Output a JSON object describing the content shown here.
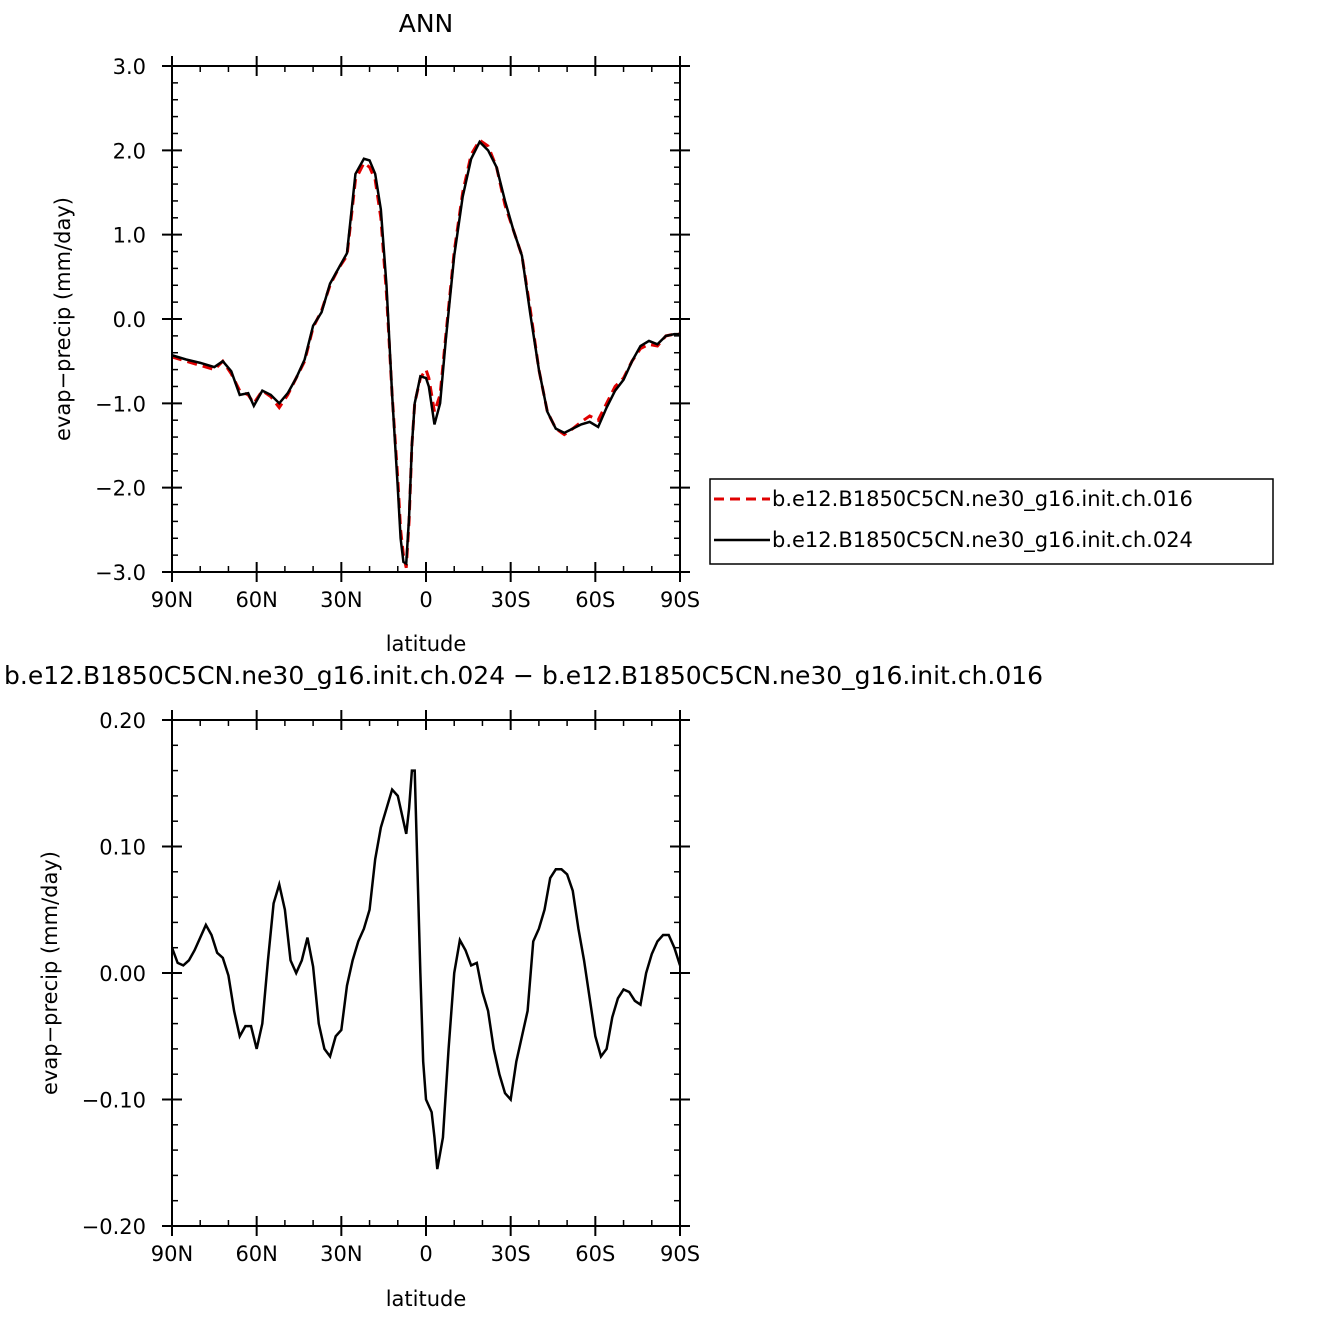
{
  "chart_data": [
    {
      "type": "line",
      "title": "ANN",
      "xlabel": "latitude",
      "ylabel": "evap−precip (mm/day)",
      "xlim": [
        90,
        -90
      ],
      "ylim": [
        -3.0,
        3.0
      ],
      "x_tick_values": [
        90,
        60,
        30,
        0,
        -30,
        -60,
        -90
      ],
      "x_tick_labels": [
        "90N",
        "60N",
        "30N",
        "0",
        "30S",
        "60S",
        "90S"
      ],
      "y_tick_values": [
        -3.0,
        -2.0,
        -1.0,
        0.0,
        1.0,
        2.0,
        3.0
      ],
      "y_tick_labels": [
        "−3.0",
        "−2.0",
        "−1.0",
        "0.0",
        "1.0",
        "2.0",
        "3.0"
      ],
      "legend": "right",
      "grid": false,
      "series": [
        {
          "name": "b.e12.B1850C5CN.ne30_g16.init.ch.016",
          "color": "#e00000",
          "dash": "dashed",
          "x": [
            90,
            85,
            80,
            75,
            72,
            69,
            66,
            63,
            61,
            58,
            55,
            52,
            49,
            46,
            43,
            40,
            37,
            34,
            31,
            28,
            25,
            22,
            20,
            18,
            16,
            14,
            12,
            10,
            9,
            8,
            7,
            6,
            5,
            4,
            2,
            0,
            -1,
            -3,
            -5,
            -7,
            -10,
            -13,
            -16,
            -19,
            -22,
            -25,
            -28,
            -31,
            -34,
            -37,
            -40,
            -43,
            -46,
            -49,
            -52,
            -55,
            -58,
            -61,
            -64,
            -67,
            -70,
            -73,
            -76,
            -79,
            -82,
            -85,
            -88,
            -90
          ],
          "y": [
            -0.45,
            -0.5,
            -0.55,
            -0.6,
            -0.5,
            -0.65,
            -0.85,
            -0.9,
            -1.0,
            -0.85,
            -0.92,
            -1.05,
            -0.9,
            -0.7,
            -0.5,
            -0.1,
            0.1,
            0.4,
            0.6,
            0.75,
            1.65,
            1.85,
            1.8,
            1.65,
            1.2,
            0.3,
            -0.9,
            -1.9,
            -2.5,
            -2.8,
            -2.95,
            -2.4,
            -1.5,
            -1.0,
            -0.7,
            -0.6,
            -0.7,
            -1.1,
            -0.9,
            -0.2,
            0.8,
            1.5,
            1.95,
            2.12,
            2.05,
            1.8,
            1.35,
            1.05,
            0.75,
            0.1,
            -0.6,
            -1.1,
            -1.3,
            -1.37,
            -1.3,
            -1.22,
            -1.15,
            -1.2,
            -1.0,
            -0.8,
            -0.7,
            -0.5,
            -0.35,
            -0.3,
            -0.32,
            -0.2,
            -0.18,
            -0.18
          ]
        },
        {
          "name": "b.e12.B1850C5CN.ne30_g16.init.ch.024",
          "color": "#000000",
          "dash": "solid",
          "x": [
            90,
            85,
            80,
            75,
            72,
            69,
            66,
            63,
            61,
            58,
            55,
            52,
            49,
            46,
            43,
            40,
            37,
            34,
            31,
            28,
            25,
            22,
            20,
            18,
            16,
            14,
            12,
            10,
            9,
            8,
            7,
            6,
            5,
            4,
            2,
            0,
            -1,
            -3,
            -5,
            -7,
            -10,
            -13,
            -16,
            -19,
            -22,
            -25,
            -28,
            -31,
            -34,
            -37,
            -40,
            -43,
            -46,
            -49,
            -52,
            -55,
            -58,
            -61,
            -64,
            -67,
            -70,
            -73,
            -76,
            -79,
            -82,
            -85,
            -88,
            -90
          ],
          "y": [
            -0.43,
            -0.48,
            -0.52,
            -0.57,
            -0.5,
            -0.62,
            -0.9,
            -0.88,
            -1.03,
            -0.85,
            -0.9,
            -1.0,
            -0.88,
            -0.7,
            -0.48,
            -0.08,
            0.08,
            0.42,
            0.6,
            0.78,
            1.72,
            1.9,
            1.88,
            1.72,
            1.3,
            0.4,
            -0.9,
            -2.0,
            -2.6,
            -2.88,
            -2.9,
            -2.35,
            -1.5,
            -1.0,
            -0.68,
            -0.7,
            -0.8,
            -1.25,
            -1.0,
            -0.25,
            0.75,
            1.45,
            1.9,
            2.1,
            2.0,
            1.8,
            1.4,
            1.05,
            0.75,
            0.05,
            -0.6,
            -1.1,
            -1.3,
            -1.35,
            -1.3,
            -1.25,
            -1.22,
            -1.28,
            -1.05,
            -0.85,
            -0.72,
            -0.5,
            -0.32,
            -0.26,
            -0.3,
            -0.2,
            -0.18,
            -0.18
          ]
        }
      ]
    },
    {
      "type": "line",
      "title": "b.e12.B1850C5CN.ne30_g16.init.ch.024 − b.e12.B1850C5CN.ne30_g16.init.ch.016",
      "xlabel": "latitude",
      "ylabel": "evap−precip (mm/day)",
      "xlim": [
        90,
        -90
      ],
      "ylim": [
        -0.2,
        0.2
      ],
      "x_tick_values": [
        90,
        60,
        30,
        0,
        -30,
        -60,
        -90
      ],
      "x_tick_labels": [
        "90N",
        "60N",
        "30N",
        "0",
        "30S",
        "60S",
        "90S"
      ],
      "y_tick_values": [
        -0.2,
        -0.1,
        0.0,
        0.1,
        0.2
      ],
      "y_tick_labels": [
        "−0.20",
        "−0.10",
        "0.00",
        "0.10",
        "0.20"
      ],
      "grid": false,
      "series": [
        {
          "color": "#000000",
          "dash": "solid",
          "x": [
            90,
            88,
            86,
            84,
            82,
            80,
            78,
            76,
            74,
            72,
            70,
            68,
            66,
            64,
            62,
            60,
            58,
            56,
            54,
            52,
            50,
            48,
            46,
            44,
            42,
            40,
            38,
            36,
            34,
            32,
            30,
            28,
            26,
            24,
            22,
            20,
            18,
            16,
            14,
            12,
            10,
            8,
            7,
            6,
            5,
            4,
            3,
            2,
            1,
            0,
            -2,
            -3,
            -4,
            -6,
            -8,
            -10,
            -12,
            -14,
            -16,
            -18,
            -20,
            -22,
            -24,
            -26,
            -28,
            -30,
            -32,
            -34,
            -36,
            -38,
            -40,
            -42,
            -44,
            -46,
            -48,
            -50,
            -52,
            -54,
            -56,
            -58,
            -60,
            -62,
            -64,
            -66,
            -68,
            -70,
            -72,
            -74,
            -76,
            -78,
            -80,
            -82,
            -84,
            -86,
            -88,
            -90
          ],
          "y": [
            0.02,
            0.008,
            0.006,
            0.01,
            0.018,
            0.028,
            0.038,
            0.03,
            0.016,
            0.012,
            -0.002,
            -0.03,
            -0.05,
            -0.042,
            -0.042,
            -0.06,
            -0.04,
            0.01,
            0.055,
            0.07,
            0.05,
            0.01,
            0.0,
            0.01,
            0.028,
            0.005,
            -0.04,
            -0.06,
            -0.066,
            -0.05,
            -0.045,
            -0.01,
            0.01,
            0.025,
            0.035,
            0.05,
            0.09,
            0.115,
            0.13,
            0.145,
            0.14,
            0.12,
            0.11,
            0.13,
            0.16,
            0.16,
            0.08,
            0.0,
            -0.07,
            -0.1,
            -0.11,
            -0.13,
            -0.155,
            -0.13,
            -0.06,
            0.0,
            0.026,
            0.018,
            0.006,
            0.008,
            -0.015,
            -0.03,
            -0.06,
            -0.08,
            -0.095,
            -0.1,
            -0.07,
            -0.05,
            -0.03,
            0.025,
            0.035,
            0.05,
            0.075,
            0.082,
            0.082,
            0.078,
            0.065,
            0.035,
            0.01,
            -0.02,
            -0.05,
            -0.066,
            -0.06,
            -0.035,
            -0.02,
            -0.013,
            -0.015,
            -0.022,
            -0.025,
            0.0,
            0.015,
            0.025,
            0.03,
            0.03,
            0.02,
            0.006
          ]
        }
      ]
    }
  ]
}
